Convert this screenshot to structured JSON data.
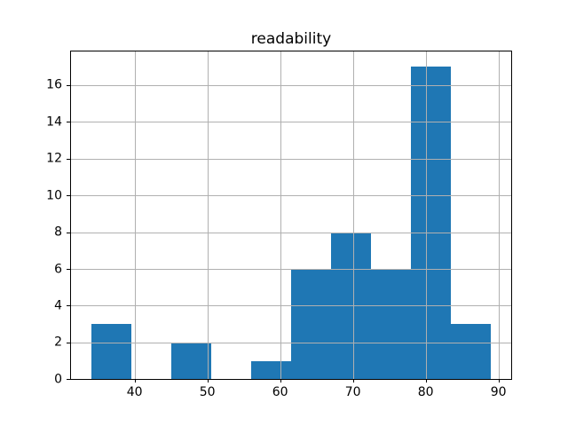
{
  "figure": {
    "background": "#ffffff"
  },
  "chart_data": {
    "type": "bar",
    "subtype": "histogram",
    "title": "readability",
    "xlabel": "",
    "ylabel": "",
    "bin_edges": [
      34,
      39.5,
      45,
      50.5,
      56,
      61.5,
      67,
      72.5,
      78,
      83.5,
      89
    ],
    "counts": [
      3,
      0,
      2,
      0,
      1,
      6,
      8,
      6,
      17,
      3
    ],
    "xticks": [
      40,
      50,
      60,
      70,
      80,
      90
    ],
    "yticks": [
      0,
      2,
      4,
      6,
      8,
      10,
      12,
      14,
      16
    ],
    "xlim": [
      31.25,
      91.75
    ],
    "ylim": [
      0,
      17.85
    ],
    "grid": true,
    "grid_over_bars": true,
    "legend": false,
    "bar_color": "#1f77b4",
    "grid_color": "#b0b0b0",
    "spine_color": "#000000",
    "text_color": "#000000"
  }
}
